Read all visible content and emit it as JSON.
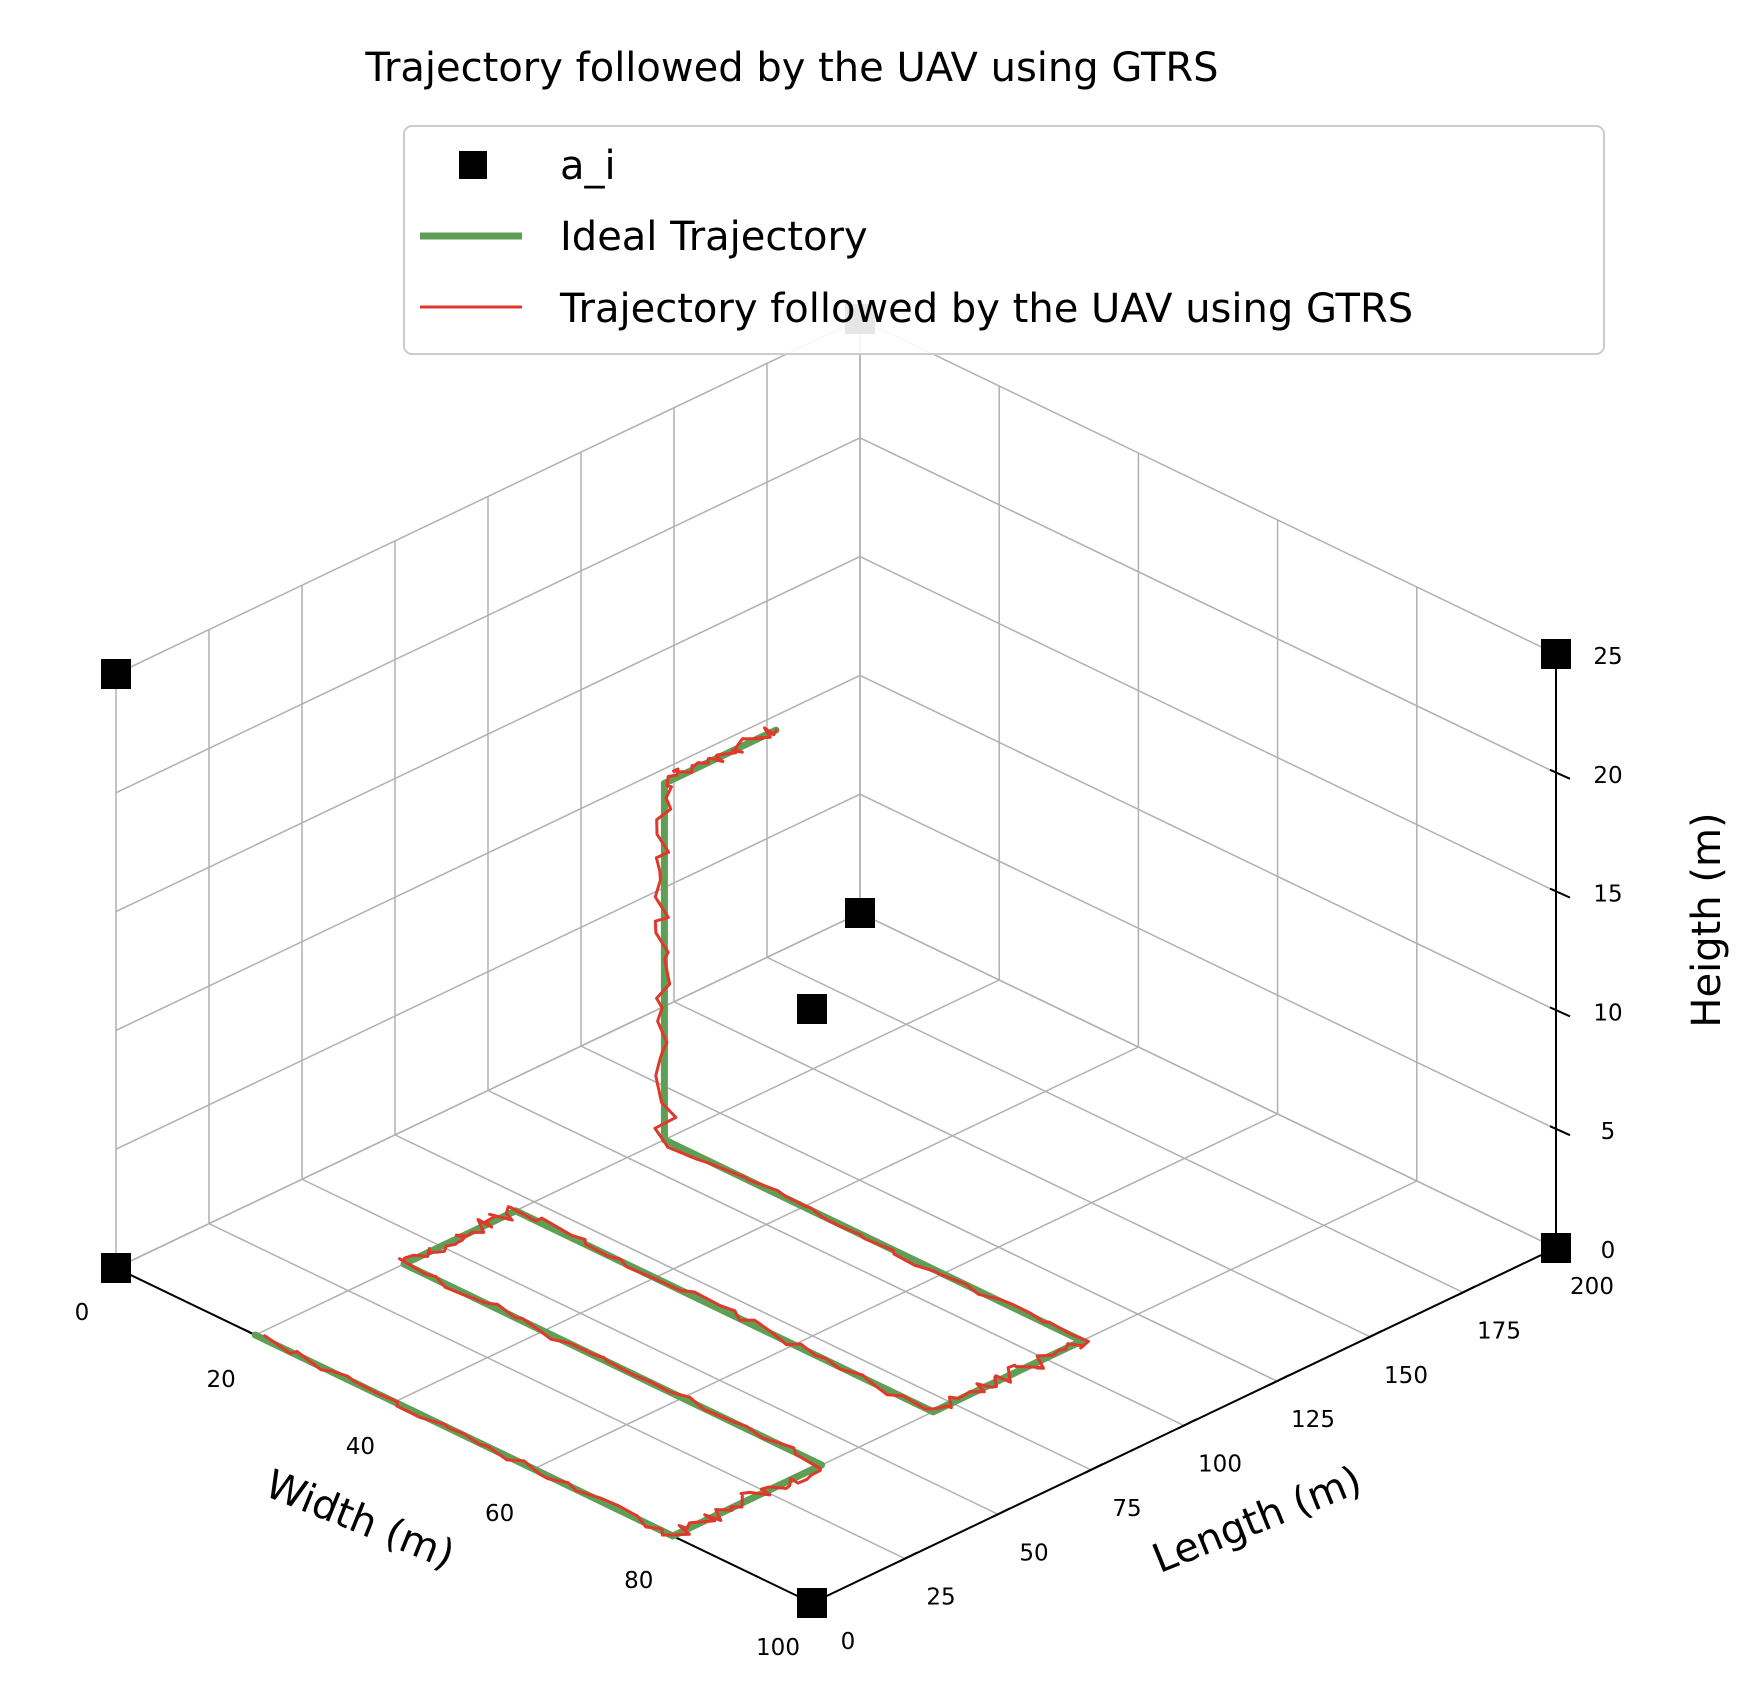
{
  "chart_data": {
    "type": "line",
    "projection": "3d",
    "title": "Trajectory followed by the UAV using GTRS",
    "xlabel": "Width (m)",
    "ylabel": "Length (m)",
    "zlabel": "Heigth (m)",
    "xlim": [
      0,
      100
    ],
    "ylim": [
      0,
      200
    ],
    "zlim": [
      0,
      25
    ],
    "x_ticks": [
      "0",
      "20",
      "40",
      "60",
      "80",
      "100"
    ],
    "y_ticks": [
      "0",
      "25",
      "50",
      "75",
      "100",
      "125",
      "150",
      "175",
      "200"
    ],
    "z_ticks": [
      "0",
      "5",
      "10",
      "15",
      "20",
      "25"
    ],
    "grid": true,
    "legend_position": "upper-center",
    "legend": [
      {
        "label": "a_i",
        "marker": "square",
        "color": "#000000"
      },
      {
        "label": "Ideal Trajectory",
        "color": "#5f9e55"
      },
      {
        "label": "Trajectory followed by the UAV using GTRS",
        "color": "#e0392b"
      }
    ],
    "anchors": {
      "name": "a_i",
      "x": [
        0,
        100,
        0,
        100,
        0,
        100,
        0,
        100
      ],
      "y": [
        0,
        0,
        200,
        200,
        0,
        0,
        200,
        200
      ],
      "z": [
        0,
        0,
        0,
        0,
        25,
        25,
        25,
        25
      ],
      "color": "#000000"
    },
    "series": [
      {
        "name": "Ideal Trajectory",
        "color": "#5f9e55",
        "x": [
          20,
          80,
          80,
          20,
          20,
          80,
          80,
          20,
          20,
          20
        ],
        "y": [
          0,
          0,
          40,
          40,
          70,
          70,
          110,
          110,
          110,
          140
        ],
        "z": [
          0,
          0,
          0,
          0,
          0,
          0,
          0,
          0,
          15,
          15
        ]
      },
      {
        "name": "Trajectory followed by the UAV using GTRS",
        "color": "#e0392b",
        "noise": 1.2,
        "x": [
          20,
          80,
          80,
          20,
          20,
          80,
          80,
          20,
          20,
          20
        ],
        "y": [
          0,
          0,
          40,
          40,
          70,
          70,
          110,
          110,
          110,
          140
        ],
        "z": [
          0,
          0,
          0,
          0,
          0,
          0,
          0,
          0,
          15,
          15
        ]
      }
    ]
  }
}
